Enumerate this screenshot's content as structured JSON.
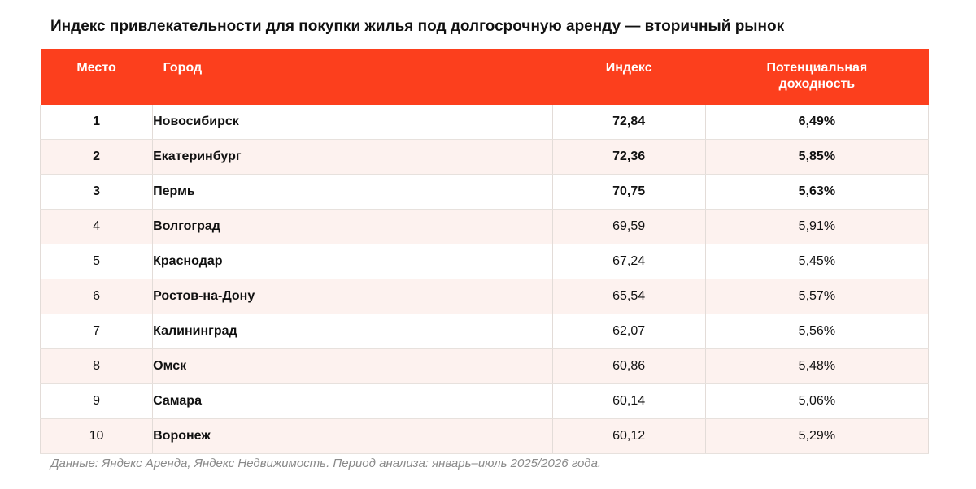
{
  "title": "Индекс привлекательности для покупки жилья под долгосрочную аренду — вторичный рынок",
  "header": {
    "rank": "Место",
    "city": "Город",
    "index": "Индекс",
    "yield_line1": "Потенциальная",
    "yield_line2": "доходность"
  },
  "accent_color": "#fc3f1d",
  "rows": [
    {
      "rank": "1",
      "city": "Новосибирск",
      "index": "72,84",
      "yield": "6,49%"
    },
    {
      "rank": "2",
      "city": "Екатеринбург",
      "index": "72,36",
      "yield": "5,85%"
    },
    {
      "rank": "3",
      "city": "Пермь",
      "index": "70,75",
      "yield": "5,63%"
    },
    {
      "rank": "4",
      "city": "Волгоград",
      "index": "69,59",
      "yield": "5,91%"
    },
    {
      "rank": "5",
      "city": "Краснодар",
      "index": "67,24",
      "yield": "5,45%"
    },
    {
      "rank": "6",
      "city": "Ростов-на-Дону",
      "index": "65,54",
      "yield": "5,57%"
    },
    {
      "rank": "7",
      "city": "Калининград",
      "index": "62,07",
      "yield": "5,56%"
    },
    {
      "rank": "8",
      "city": "Омск",
      "index": "60,86",
      "yield": "5,48%"
    },
    {
      "rank": "9",
      "city": "Самара",
      "index": "60,14",
      "yield": "5,06%"
    },
    {
      "rank": "10",
      "city": "Воронеж",
      "index": "60,12",
      "yield": "5,29%"
    }
  ],
  "note": "Данные: Яндекс Аренда, Яндекс Недвижимость. Период анализа: январь–июль 2025/2026 года."
}
